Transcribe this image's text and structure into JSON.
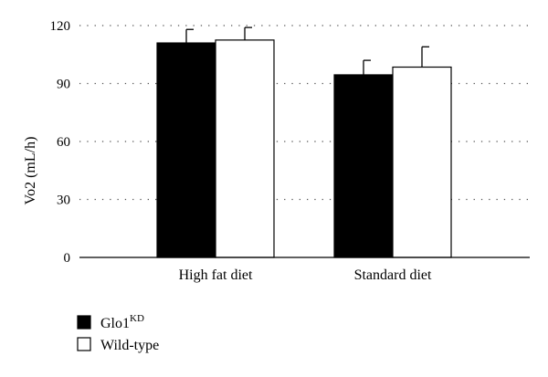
{
  "chart_data": {
    "type": "bar",
    "title": "",
    "xlabel": "",
    "ylabel": "Vo2 (mL/h)",
    "ylim": [
      0,
      120
    ],
    "yticks": [
      0,
      30,
      60,
      90,
      120
    ],
    "grid": "horizontal-dotted",
    "legend_position": "bottom-left",
    "categories": [
      "High fat diet",
      "Standard diet"
    ],
    "series": [
      {
        "name": "Glo1",
        "name_superscript": "KD",
        "fill": "#000000",
        "values": [
          111,
          94.5
        ],
        "errors": [
          7,
          7.5
        ]
      },
      {
        "name": "Wild-type",
        "name_superscript": "",
        "fill": "#ffffff",
        "values": [
          112.5,
          98.5
        ],
        "errors": [
          6.5,
          10.5
        ]
      }
    ]
  }
}
